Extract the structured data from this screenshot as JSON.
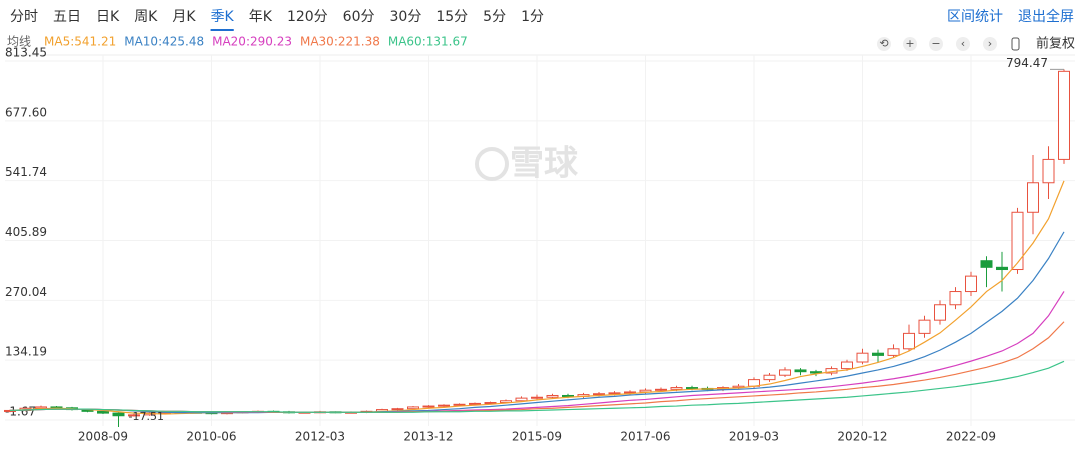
{
  "toolbar": {
    "tabs": [
      "分时",
      "五日",
      "日K",
      "周K",
      "月K",
      "季K",
      "年K",
      "120分",
      "60分",
      "30分",
      "15分",
      "5分",
      "1分"
    ],
    "active_index": 5,
    "actions": [
      "区间统计",
      "退出全屏"
    ],
    "indicator_label": "均线",
    "adjust": "前复权"
  },
  "watermark": "雪球",
  "chart_data": {
    "type": "candlestick",
    "categories": [
      null,
      null,
      null,
      null,
      null,
      null,
      "2008-09",
      null,
      null,
      null,
      null,
      null,
      null,
      "2010-06",
      null,
      null,
      null,
      null,
      null,
      null,
      "2012-03",
      null,
      null,
      null,
      null,
      null,
      null,
      "2013-12",
      null,
      null,
      null,
      null,
      null,
      null,
      "2015-09",
      null,
      null,
      null,
      null,
      null,
      null,
      "2017-06",
      null,
      null,
      null,
      null,
      null,
      null,
      "2019-03",
      null,
      null,
      null,
      null,
      null,
      null,
      "2020-12",
      null,
      null,
      null,
      null,
      null,
      null,
      "2022-09",
      null,
      null,
      null,
      null,
      null,
      null
    ],
    "open": [
      18,
      20,
      25,
      28,
      26,
      22,
      18,
      14,
      8,
      10,
      14,
      15,
      16,
      15,
      13,
      15,
      17,
      18,
      17,
      15,
      16,
      17,
      16,
      16,
      18,
      22,
      24,
      28,
      30,
      32,
      34,
      36,
      38,
      42,
      48,
      50,
      54,
      52,
      56,
      58,
      60,
      62,
      66,
      68,
      72,
      70,
      68,
      72,
      75,
      90,
      100,
      112,
      108,
      105,
      115,
      130,
      150,
      145,
      160,
      195,
      225,
      260,
      290,
      360,
      345,
      340,
      470,
      537,
      590
    ],
    "high": [
      22,
      27,
      31,
      30,
      28,
      24,
      20,
      16,
      12,
      16,
      17,
      18,
      18,
      17,
      16,
      18,
      20,
      20,
      19,
      17,
      19,
      18,
      18,
      20,
      24,
      26,
      30,
      32,
      34,
      36,
      38,
      40,
      45,
      52,
      56,
      58,
      58,
      60,
      62,
      64,
      66,
      70,
      72,
      76,
      76,
      74,
      75,
      80,
      95,
      105,
      118,
      116,
      112,
      120,
      135,
      160,
      158,
      170,
      215,
      235,
      270,
      300,
      335,
      370,
      380,
      480,
      600,
      620,
      794.47
    ],
    "low": [
      16,
      18,
      23,
      24,
      20,
      16,
      12,
      -17.51,
      6,
      8,
      12,
      13,
      13,
      11,
      11,
      13,
      15,
      15,
      13,
      13,
      14,
      14,
      14,
      14,
      16,
      20,
      22,
      26,
      28,
      30,
      32,
      34,
      36,
      40,
      44,
      46,
      48,
      48,
      52,
      54,
      56,
      58,
      62,
      64,
      66,
      64,
      64,
      68,
      70,
      85,
      96,
      100,
      98,
      100,
      110,
      125,
      130,
      140,
      155,
      185,
      215,
      250,
      280,
      300,
      290,
      330,
      420,
      500,
      580
    ],
    "close": [
      20,
      25,
      28,
      26,
      22,
      18,
      14,
      8,
      10,
      14,
      15,
      16,
      15,
      13,
      15,
      17,
      18,
      17,
      15,
      16,
      17,
      16,
      16,
      18,
      22,
      24,
      28,
      30,
      32,
      34,
      36,
      38,
      42,
      48,
      50,
      54,
      52,
      56,
      58,
      60,
      62,
      66,
      68,
      72,
      70,
      68,
      72,
      75,
      90,
      100,
      112,
      108,
      105,
      115,
      130,
      150,
      145,
      160,
      195,
      225,
      260,
      290,
      325,
      345,
      340,
      470,
      537,
      590,
      790
    ],
    "up_color": "#e8523f",
    "down_color": "#1a9c3c",
    "series": [
      {
        "name": "MA5:541.21",
        "color": "#f2a12e",
        "values": [
          20,
          22,
          24,
          25,
          24,
          22,
          20,
          17,
          14,
          13,
          12,
          13,
          14,
          15,
          15,
          15,
          16,
          16,
          16,
          16,
          16,
          16,
          16,
          16,
          18,
          19,
          22,
          25,
          27,
          30,
          32,
          34,
          37,
          40,
          44,
          47,
          50,
          52,
          54,
          56,
          58,
          61,
          63,
          66,
          68,
          69,
          70,
          71,
          75,
          80,
          88,
          97,
          103,
          108,
          112,
          120,
          129,
          140,
          155,
          175,
          196,
          225,
          255,
          290,
          315,
          355,
          400,
          455,
          541.21
        ]
      },
      {
        "name": "MA10:425.48",
        "color": "#3b82c4",
        "values": [
          20,
          21,
          22,
          23,
          23,
          23,
          22,
          21,
          19,
          17,
          16,
          15,
          15,
          15,
          15,
          15,
          15,
          16,
          16,
          16,
          16,
          16,
          16,
          16,
          17,
          18,
          19,
          20,
          22,
          24,
          27,
          29,
          32,
          35,
          38,
          41,
          44,
          47,
          50,
          52,
          55,
          57,
          59,
          61,
          63,
          65,
          67,
          68,
          70,
          73,
          77,
          82,
          87,
          92,
          98,
          105,
          112,
          120,
          130,
          142,
          157,
          175,
          195,
          220,
          245,
          275,
          315,
          365,
          425.48
        ]
      },
      {
        "name": "MA20:290.23",
        "color": "#d63fbf",
        "values": [
          20,
          21,
          22,
          23,
          23,
          23,
          22,
          21,
          20,
          19,
          18,
          18,
          17,
          17,
          16,
          16,
          16,
          16,
          16,
          16,
          16,
          16,
          16,
          16,
          16,
          17,
          17,
          18,
          19,
          20,
          21,
          22,
          23,
          25,
          27,
          29,
          31,
          34,
          37,
          40,
          43,
          45,
          48,
          51,
          54,
          56,
          58,
          60,
          62,
          64,
          66,
          68,
          71,
          74,
          78,
          82,
          87,
          92,
          98,
          105,
          113,
          122,
          132,
          143,
          155,
          172,
          195,
          235,
          290.23
        ]
      },
      {
        "name": "MA30:221.38",
        "color": "#f0784a",
        "values": [
          20,
          21,
          22,
          23,
          23,
          23,
          22,
          21,
          20,
          19,
          18,
          18,
          17,
          17,
          17,
          17,
          17,
          16,
          16,
          16,
          16,
          16,
          16,
          16,
          16,
          16,
          17,
          17,
          18,
          18,
          19,
          20,
          21,
          22,
          24,
          25,
          27,
          29,
          31,
          33,
          35,
          37,
          40,
          42,
          45,
          47,
          49,
          51,
          53,
          55,
          57,
          60,
          62,
          65,
          68,
          72,
          75,
          79,
          84,
          89,
          95,
          102,
          110,
          118,
          128,
          140,
          160,
          185,
          221.38
        ]
      },
      {
        "name": "MA60:131.67",
        "color": "#3cc48a",
        "values": [
          20,
          21,
          22,
          23,
          23,
          23,
          22,
          21,
          20,
          19,
          18,
          18,
          17,
          17,
          17,
          17,
          17,
          17,
          16,
          16,
          16,
          16,
          16,
          16,
          16,
          16,
          16,
          17,
          17,
          17,
          18,
          18,
          19,
          19,
          20,
          21,
          22,
          23,
          24,
          25,
          26,
          27,
          29,
          30,
          32,
          33,
          35,
          36,
          38,
          40,
          42,
          44,
          46,
          48,
          50,
          53,
          56,
          59,
          62,
          66,
          70,
          74,
          79,
          84,
          90,
          97,
          106,
          116,
          131.67
        ]
      }
    ],
    "ylim": [
      -1.67,
      813.45
    ],
    "yticks": [
      -1.67,
      134.19,
      270.04,
      405.89,
      541.74,
      {
        "value": 677.6,
        "label": "677.60"
      },
      813.45
    ],
    "grid": true
  }
}
